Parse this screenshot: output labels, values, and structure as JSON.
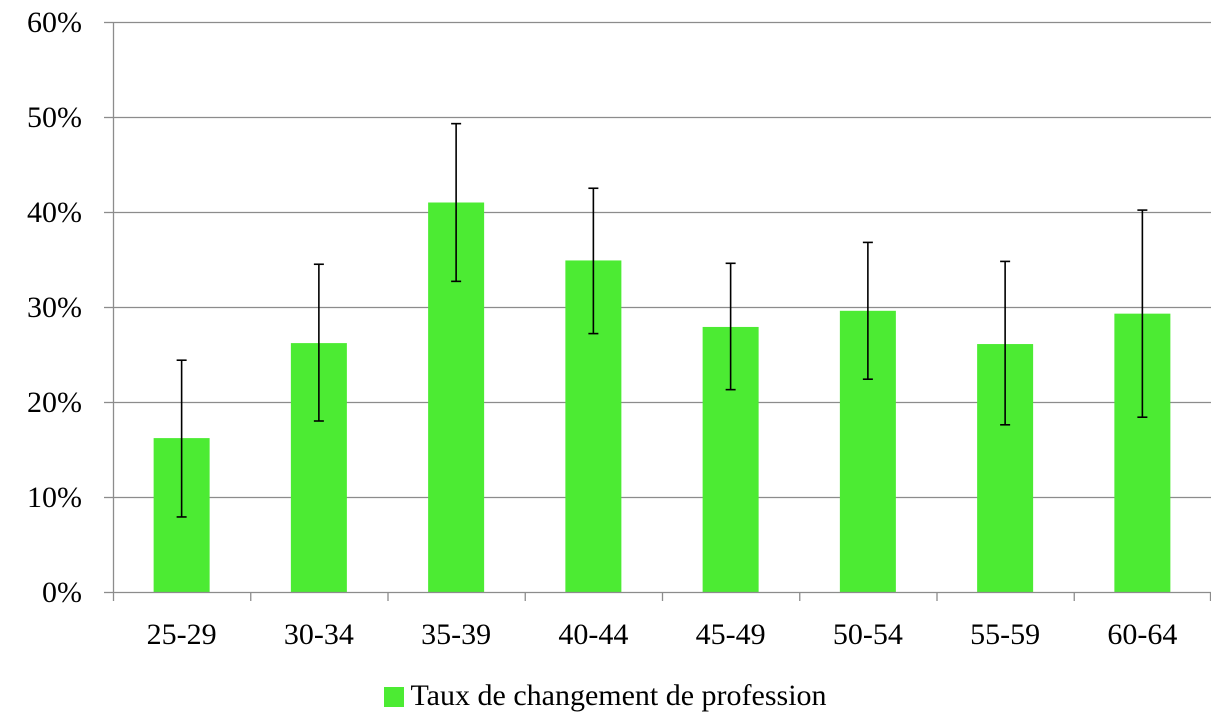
{
  "chart_data": {
    "type": "bar",
    "title": "",
    "xlabel": "",
    "ylabel": "",
    "categories": [
      "25-29",
      "30-34",
      "35-39",
      "40-44",
      "45-49",
      "50-54",
      "55-59",
      "60-64"
    ],
    "series": [
      {
        "name": "Taux de changement de profession",
        "values": [
          16.2,
          26.2,
          41.0,
          34.9,
          27.9,
          29.6,
          26.1,
          29.3
        ],
        "error_low": [
          7.9,
          18.0,
          32.7,
          27.2,
          21.3,
          22.4,
          17.6,
          18.4
        ],
        "error_high": [
          24.4,
          34.5,
          49.3,
          42.5,
          34.6,
          36.8,
          34.8,
          40.2
        ]
      }
    ],
    "ylim": [
      0,
      60
    ],
    "yticks": [
      0,
      10,
      20,
      30,
      40,
      50,
      60
    ],
    "ytick_labels": [
      "0%",
      "10%",
      "20%",
      "30%",
      "40%",
      "50%",
      "60%"
    ],
    "grid": true,
    "legend_position": "bottom",
    "colors": {
      "bar": "#4CEB33",
      "error_bar": "#000000",
      "gridline": "#8C8C8C",
      "axis": "#8C8C8C",
      "text": "#000000"
    }
  }
}
